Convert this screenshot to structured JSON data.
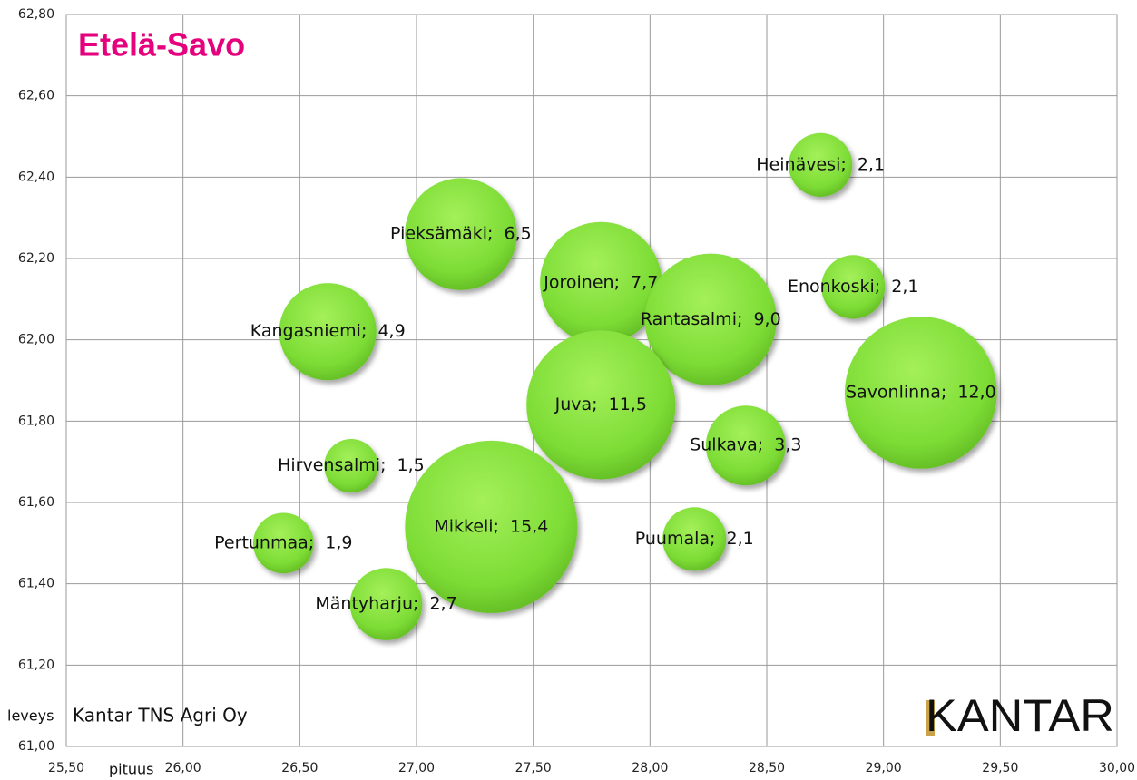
{
  "chart_data": {
    "type": "bubble",
    "title": "Etelä-Savo",
    "x_label": "pituus",
    "y_label": "leveys",
    "source": "Kantar TNS Agri Oy",
    "logo": "KANTAR",
    "x": [
      28.73,
      27.19,
      27.79,
      28.26,
      28.87,
      26.62,
      29.16,
      27.79,
      28.41,
      26.72,
      27.32,
      28.19,
      26.43,
      26.87
    ],
    "values": [
      62.43,
      62.26,
      62.14,
      62.05,
      62.13,
      62.02,
      61.87,
      61.84,
      61.74,
      61.69,
      61.54,
      61.51,
      61.5,
      61.35
    ],
    "sizes": [
      2.1,
      6.5,
      7.7,
      9.0,
      2.1,
      4.9,
      12.0,
      11.5,
      3.3,
      1.5,
      15.4,
      2.1,
      1.9,
      2.7
    ],
    "size_labels": [
      "Heinävesi;  2,1",
      "Pieksämäki;  6,5",
      "Joroinen;  7,7",
      "Rantasalmi;  9,0",
      "Enonkoski;  2,1",
      "Kangasniemi;  4,9",
      "Savonlinna;  12,0",
      "Juva;  11,5",
      "Sulkava;  3,3",
      "Hirvensalmi;  1,5",
      "Mikkeli;  15,4",
      "Puumala;  2,1",
      "Pertunmaa;  1,9",
      "Mäntyharju;  2,7"
    ],
    "color": "#7ddc35",
    "xlim": [
      25.5,
      30.0
    ],
    "xticks": [
      {
        "value": 25.5,
        "label": "25,50"
      },
      {
        "value": 26.0,
        "label": "26,00"
      },
      {
        "value": 26.5,
        "label": "26,50"
      },
      {
        "value": 27.0,
        "label": "27,00"
      },
      {
        "value": 27.5,
        "label": "27,50"
      },
      {
        "value": 28.0,
        "label": "28,00"
      },
      {
        "value": 28.5,
        "label": "28,50"
      },
      {
        "value": 29.0,
        "label": "29,00"
      },
      {
        "value": 29.5,
        "label": "29,50"
      },
      {
        "value": 30.0,
        "label": "30,00"
      }
    ],
    "ylim": [
      61.0,
      62.8
    ],
    "yticks": [
      {
        "value": 61.0,
        "label": "61,00"
      },
      {
        "value": 61.2,
        "label": "61,20"
      },
      {
        "value": 61.4,
        "label": "61,40"
      },
      {
        "value": 61.6,
        "label": "61,60"
      },
      {
        "value": 61.8,
        "label": "61,80"
      },
      {
        "value": 62.0,
        "label": "62,00"
      },
      {
        "value": 62.2,
        "label": "62,20"
      },
      {
        "value": 62.4,
        "label": "62,40"
      },
      {
        "value": 62.6,
        "label": "62,60"
      },
      {
        "value": 62.8,
        "label": "62,80"
      }
    ],
    "grid": true
  }
}
